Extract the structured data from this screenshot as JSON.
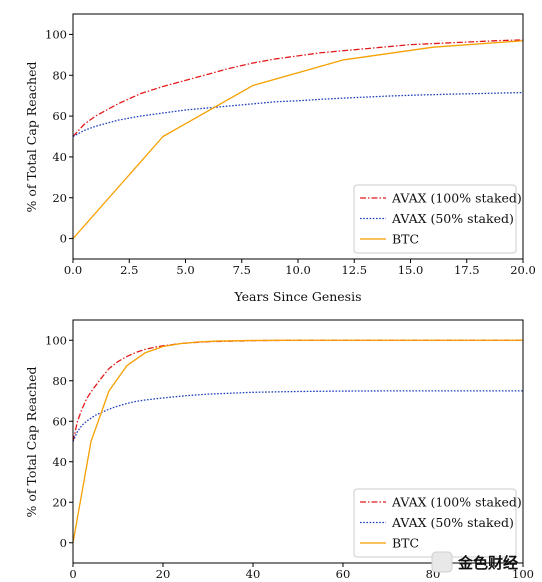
{
  "colors": {
    "avax100": "#e31a1c",
    "avax50": "#1f3fbf",
    "btc": "#f5a000",
    "axes": "#000000"
  },
  "chart_data": [
    {
      "type": "line",
      "title": "",
      "xlabel": "Years Since Genesis",
      "ylabel": "% of Total Cap Reached",
      "xlim": [
        0,
        20
      ],
      "ylim": [
        -10,
        110
      ],
      "xticks": [
        0,
        2.5,
        5,
        7.5,
        10,
        12.5,
        15,
        17.5,
        20
      ],
      "xtick_labels": [
        "0.0",
        "2.5",
        "5.0",
        "7.5",
        "10.0",
        "12.5",
        "15.0",
        "17.5",
        "20.0"
      ],
      "yticks": [
        0,
        20,
        40,
        60,
        80,
        100
      ],
      "ytick_labels": [
        "0",
        "20",
        "40",
        "60",
        "80",
        "100"
      ],
      "grid": false,
      "legend": "lower-right",
      "series": [
        {
          "name": "AVAX (100% staked)",
          "style": "dashdot",
          "color": "#e31a1c",
          "x": [
            0,
            0.5,
            1,
            1.5,
            2,
            3,
            4,
            5,
            6,
            7,
            8,
            9,
            10,
            11,
            12,
            13,
            14,
            15,
            16,
            17,
            18,
            19,
            20
          ],
          "y": [
            50,
            56,
            60,
            63,
            66,
            71,
            74.5,
            77.5,
            80.5,
            83.5,
            86,
            88,
            89.5,
            91,
            92,
            93,
            94,
            95,
            95.5,
            96,
            96.5,
            97,
            97.3
          ]
        },
        {
          "name": "AVAX (50% staked)",
          "style": "dotted",
          "color": "#1f3fbf",
          "x": [
            0,
            0.5,
            1,
            1.5,
            2,
            3,
            4,
            5,
            6,
            7,
            8,
            9,
            10,
            11,
            12,
            13,
            14,
            15,
            16,
            17,
            18,
            19,
            20
          ],
          "y": [
            50,
            53,
            55,
            56.5,
            58,
            60,
            61.5,
            63,
            64,
            65,
            66,
            67,
            67.5,
            68.2,
            68.8,
            69.3,
            69.8,
            70.2,
            70.5,
            70.8,
            71,
            71.3,
            71.5
          ]
        },
        {
          "name": "BTC",
          "style": "solid",
          "color": "#f5a000",
          "x": [
            0,
            4,
            8,
            12,
            16,
            20
          ],
          "y": [
            0,
            50,
            75,
            87.5,
            93.75,
            96.9
          ]
        }
      ]
    },
    {
      "type": "line",
      "title": "",
      "xlabel": "",
      "ylabel": "% of Total Cap Reached",
      "xlim": [
        0,
        100
      ],
      "ylim": [
        -10,
        110
      ],
      "xticks": [
        0,
        20,
        40,
        60,
        80,
        100
      ],
      "xtick_labels": [
        "0",
        "20",
        "40",
        "60",
        "80",
        "100"
      ],
      "yticks": [
        0,
        20,
        40,
        60,
        80,
        100
      ],
      "ytick_labels": [
        "0",
        "20",
        "40",
        "60",
        "80",
        "100"
      ],
      "grid": false,
      "legend": "lower-right",
      "series": [
        {
          "name": "AVAX (100% staked)",
          "style": "dashdot",
          "color": "#e31a1c",
          "x": [
            0,
            1,
            2,
            3,
            4,
            5,
            6,
            8,
            10,
            12,
            14,
            16,
            18,
            20,
            25,
            30,
            40,
            50,
            60,
            70,
            80,
            90,
            100
          ],
          "y": [
            50,
            60,
            66,
            71,
            74.5,
            77.5,
            80.5,
            86,
            89.5,
            92,
            94,
            95.5,
            96.5,
            97.3,
            98.6,
            99.3,
            99.8,
            100,
            100,
            100,
            100,
            100,
            100
          ]
        },
        {
          "name": "AVAX (50% staked)",
          "style": "dotted",
          "color": "#1f3fbf",
          "x": [
            0,
            1,
            2,
            3,
            4,
            5,
            6,
            8,
            10,
            12,
            14,
            16,
            18,
            20,
            25,
            30,
            40,
            50,
            60,
            70,
            80,
            90,
            100
          ],
          "y": [
            50,
            55,
            58,
            60,
            61.5,
            63,
            64,
            66,
            67.5,
            68.8,
            69.8,
            70.5,
            71,
            71.5,
            72.6,
            73.4,
            74.3,
            74.7,
            74.9,
            75,
            75,
            75,
            75
          ]
        },
        {
          "name": "BTC",
          "style": "solid",
          "color": "#f5a000",
          "x": [
            0,
            4,
            8,
            12,
            16,
            20,
            24,
            28,
            32,
            40,
            50,
            60,
            70,
            80,
            90,
            100
          ],
          "y": [
            0,
            50,
            75,
            87.5,
            93.75,
            96.9,
            98.4,
            99.2,
            99.6,
            99.9,
            100,
            100,
            100,
            100,
            100,
            100
          ]
        }
      ]
    }
  ],
  "watermark": {
    "text": "金色财经"
  }
}
